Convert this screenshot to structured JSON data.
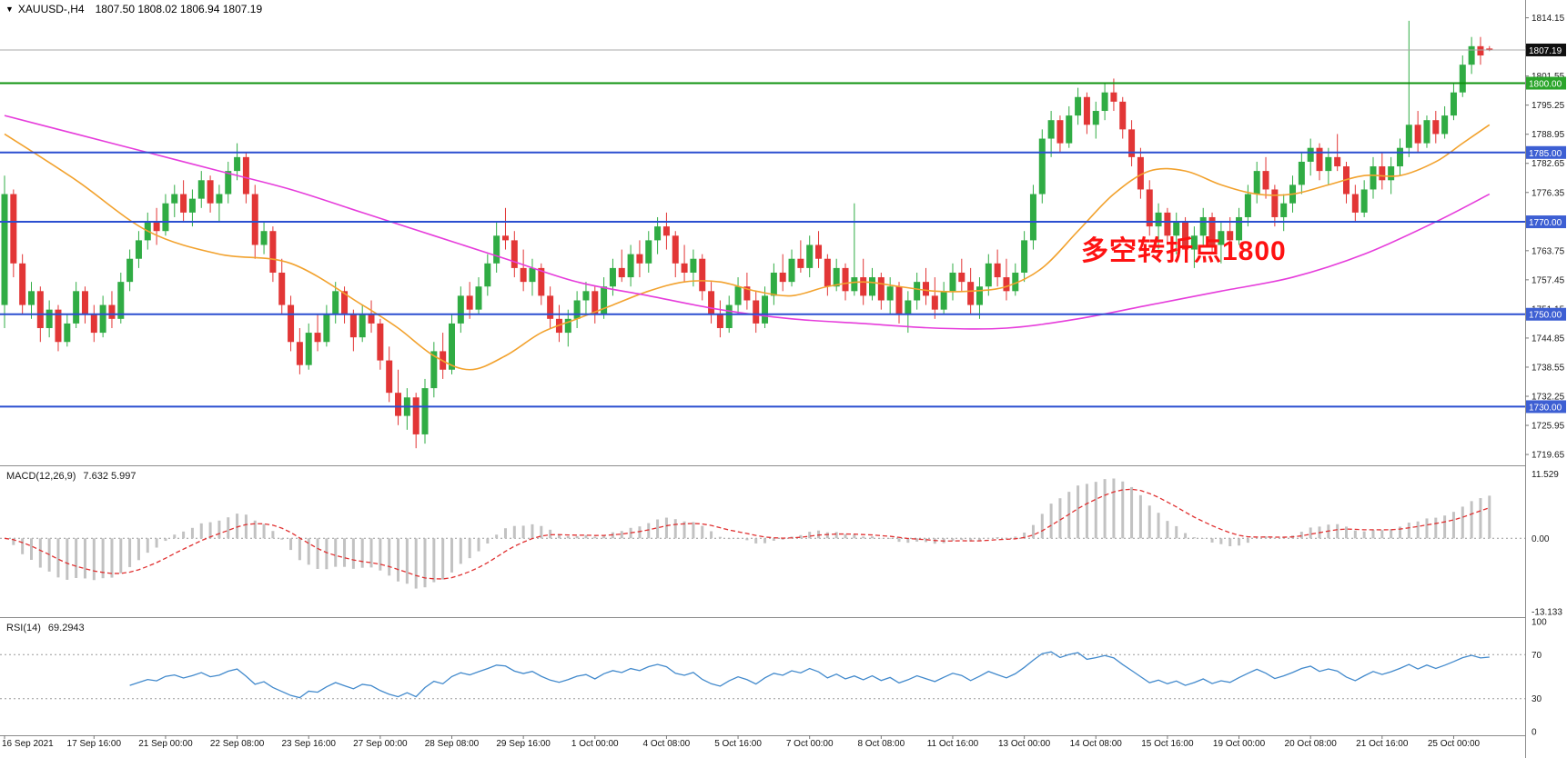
{
  "window": {
    "marker": "▼",
    "symbol_label": "XAUUSD-,H4",
    "ohlc_text": "1807.50 1808.02 1806.94 1807.19"
  },
  "annotation": {
    "text": "多空转折点1800",
    "color": "#fe1212"
  },
  "chart_data": {
    "type": "candlestick",
    "symbol": "XAUUSD-",
    "timeframe": "H4",
    "current_bar": {
      "open": 1807.5,
      "high": 1808.02,
      "low": 1806.94,
      "close": 1807.19
    },
    "current_price": 1807.19,
    "price_axis": {
      "view_max": 1818.0,
      "view_min": 1717.3,
      "tick_start": 1814.15,
      "tick_step": 6.3,
      "tick_count": 16
    },
    "colors": {
      "up": "#30ac44",
      "down": "#e23636",
      "ma_fast": "#f2a22e",
      "ma_slow": "#e63ddb",
      "hline_blue": "#2b4fd0",
      "tag_blue": "#3d5fd3",
      "hline_green": "#0f930f",
      "tag_green": "#2aa52a",
      "current_line": "#a8a8a8",
      "tag_current": "#101010",
      "histogram": "#c2c2c2",
      "macd_signal": "#e03131",
      "rsi_line": "#4189cc",
      "separator": "#8c8c8c",
      "dotted_level": "#9a9a9a"
    },
    "horizontal_levels": [
      {
        "price": 1800.0,
        "kind": "green"
      },
      {
        "price": 1785.0,
        "kind": "blue"
      },
      {
        "price": 1770.0,
        "kind": "blue"
      },
      {
        "price": 1750.0,
        "kind": "blue"
      },
      {
        "price": 1730.0,
        "kind": "blue"
      }
    ],
    "time_labels": [
      {
        "bar": 0,
        "text": "16 Sep 2021"
      },
      {
        "bar": 10,
        "text": "17 Sep 16:00"
      },
      {
        "bar": 18,
        "text": "21 Sep 00:00"
      },
      {
        "bar": 26,
        "text": "22 Sep 08:00"
      },
      {
        "bar": 34,
        "text": "23 Sep 16:00"
      },
      {
        "bar": 42,
        "text": "27 Sep 00:00"
      },
      {
        "bar": 50,
        "text": "28 Sep 08:00"
      },
      {
        "bar": 58,
        "text": "29 Sep 16:00"
      },
      {
        "bar": 66,
        "text": "1 Oct 00:00"
      },
      {
        "bar": 74,
        "text": "4 Oct 08:00"
      },
      {
        "bar": 82,
        "text": "5 Oct 16:00"
      },
      {
        "bar": 90,
        "text": "7 Oct 00:00"
      },
      {
        "bar": 98,
        "text": "8 Oct 08:00"
      },
      {
        "bar": 106,
        "text": "11 Oct 16:00"
      },
      {
        "bar": 114,
        "text": "13 Oct 00:00"
      },
      {
        "bar": 122,
        "text": "14 Oct 08:00"
      },
      {
        "bar": 130,
        "text": "15 Oct 16:00"
      },
      {
        "bar": 138,
        "text": "19 Oct 00:00"
      },
      {
        "bar": 146,
        "text": "20 Oct 08:00"
      },
      {
        "bar": 154,
        "text": "21 Oct 16:00"
      },
      {
        "bar": 162,
        "text": "25 Oct 00:00"
      }
    ],
    "candles": [
      [
        1752,
        1780,
        1747,
        1776
      ],
      [
        1776,
        1777,
        1758,
        1761
      ],
      [
        1761,
        1763,
        1750,
        1752
      ],
      [
        1752,
        1757,
        1749,
        1755
      ],
      [
        1755,
        1756,
        1744,
        1747
      ],
      [
        1747,
        1753,
        1745,
        1751
      ],
      [
        1751,
        1752,
        1742,
        1744
      ],
      [
        1744,
        1750,
        1743,
        1748
      ],
      [
        1748,
        1757,
        1747,
        1755
      ],
      [
        1755,
        1756,
        1748,
        1750
      ],
      [
        1750,
        1752,
        1744,
        1746
      ],
      [
        1746,
        1754,
        1745,
        1752
      ],
      [
        1752,
        1755,
        1747,
        1749
      ],
      [
        1749,
        1759,
        1748,
        1757
      ],
      [
        1757,
        1764,
        1755,
        1762
      ],
      [
        1762,
        1768,
        1760,
        1766
      ],
      [
        1766,
        1772,
        1764,
        1770
      ],
      [
        1770,
        1773,
        1765,
        1768
      ],
      [
        1768,
        1776,
        1767,
        1774
      ],
      [
        1774,
        1778,
        1771,
        1776
      ],
      [
        1776,
        1779,
        1770,
        1772
      ],
      [
        1772,
        1777,
        1769,
        1775
      ],
      [
        1775,
        1781,
        1773,
        1779
      ],
      [
        1779,
        1780,
        1772,
        1774
      ],
      [
        1774,
        1778,
        1770,
        1776
      ],
      [
        1776,
        1783,
        1774,
        1781
      ],
      [
        1781,
        1787,
        1779,
        1784
      ],
      [
        1784,
        1785,
        1774,
        1776
      ],
      [
        1776,
        1778,
        1762,
        1765
      ],
      [
        1765,
        1770,
        1763,
        1768
      ],
      [
        1768,
        1769,
        1757,
        1759
      ],
      [
        1759,
        1762,
        1750,
        1752
      ],
      [
        1752,
        1754,
        1742,
        1744
      ],
      [
        1744,
        1747,
        1737,
        1739
      ],
      [
        1739,
        1748,
        1738,
        1746
      ],
      [
        1746,
        1750,
        1742,
        1744
      ],
      [
        1744,
        1752,
        1743,
        1750
      ],
      [
        1750,
        1757,
        1748,
        1755
      ],
      [
        1755,
        1756,
        1748,
        1750
      ],
      [
        1750,
        1751,
        1742,
        1745
      ],
      [
        1745,
        1752,
        1744,
        1750
      ],
      [
        1750,
        1753,
        1746,
        1748
      ],
      [
        1748,
        1749,
        1738,
        1740
      ],
      [
        1740,
        1743,
        1731,
        1733
      ],
      [
        1733,
        1738,
        1726,
        1728
      ],
      [
        1728,
        1734,
        1725,
        1732
      ],
      [
        1732,
        1733,
        1721,
        1724
      ],
      [
        1724,
        1736,
        1722,
        1734
      ],
      [
        1734,
        1744,
        1732,
        1742
      ],
      [
        1742,
        1746,
        1736,
        1738
      ],
      [
        1738,
        1750,
        1737,
        1748
      ],
      [
        1748,
        1756,
        1746,
        1754
      ],
      [
        1754,
        1757,
        1749,
        1751
      ],
      [
        1751,
        1758,
        1750,
        1756
      ],
      [
        1756,
        1763,
        1754,
        1761
      ],
      [
        1761,
        1770,
        1759,
        1767
      ],
      [
        1767,
        1773,
        1764,
        1766
      ],
      [
        1766,
        1768,
        1758,
        1760
      ],
      [
        1760,
        1764,
        1755,
        1757
      ],
      [
        1757,
        1762,
        1754,
        1760
      ],
      [
        1760,
        1761,
        1752,
        1754
      ],
      [
        1754,
        1756,
        1747,
        1749
      ],
      [
        1749,
        1752,
        1744,
        1746
      ],
      [
        1746,
        1751,
        1743,
        1749
      ],
      [
        1749,
        1755,
        1747,
        1753
      ],
      [
        1753,
        1757,
        1750,
        1755
      ],
      [
        1755,
        1756,
        1748,
        1750
      ],
      [
        1750,
        1758,
        1749,
        1756
      ],
      [
        1756,
        1762,
        1754,
        1760
      ],
      [
        1760,
        1764,
        1757,
        1758
      ],
      [
        1758,
        1765,
        1756,
        1763
      ],
      [
        1763,
        1766,
        1758,
        1761
      ],
      [
        1761,
        1768,
        1759,
        1766
      ],
      [
        1766,
        1771,
        1763,
        1769
      ],
      [
        1769,
        1772,
        1764,
        1767
      ],
      [
        1767,
        1768,
        1758,
        1761
      ],
      [
        1761,
        1765,
        1757,
        1759
      ],
      [
        1759,
        1764,
        1756,
        1762
      ],
      [
        1762,
        1763,
        1753,
        1755
      ],
      [
        1755,
        1757,
        1748,
        1750
      ],
      [
        1750,
        1753,
        1745,
        1747
      ],
      [
        1747,
        1754,
        1746,
        1752
      ],
      [
        1752,
        1758,
        1750,
        1756
      ],
      [
        1756,
        1759,
        1751,
        1753
      ],
      [
        1753,
        1755,
        1746,
        1748
      ],
      [
        1748,
        1756,
        1747,
        1754
      ],
      [
        1754,
        1761,
        1752,
        1759
      ],
      [
        1759,
        1763,
        1755,
        1757
      ],
      [
        1757,
        1764,
        1756,
        1762
      ],
      [
        1762,
        1766,
        1759,
        1760
      ],
      [
        1760,
        1767,
        1758,
        1765
      ],
      [
        1765,
        1768,
        1760,
        1762
      ],
      [
        1762,
        1763,
        1754,
        1756
      ],
      [
        1756,
        1762,
        1755,
        1760
      ],
      [
        1760,
        1761,
        1753,
        1755
      ],
      [
        1755,
        1774,
        1754,
        1758
      ],
      [
        1758,
        1762,
        1752,
        1754
      ],
      [
        1754,
        1760,
        1753,
        1758
      ],
      [
        1758,
        1759,
        1751,
        1753
      ],
      [
        1753,
        1758,
        1750,
        1756
      ],
      [
        1756,
        1757,
        1748,
        1750
      ],
      [
        1750,
        1755,
        1746,
        1753
      ],
      [
        1753,
        1759,
        1751,
        1757
      ],
      [
        1757,
        1760,
        1752,
        1754
      ],
      [
        1754,
        1758,
        1749,
        1751
      ],
      [
        1751,
        1757,
        1750,
        1755
      ],
      [
        1755,
        1761,
        1753,
        1759
      ],
      [
        1759,
        1762,
        1755,
        1757
      ],
      [
        1757,
        1760,
        1750,
        1752
      ],
      [
        1752,
        1758,
        1749,
        1756
      ],
      [
        1756,
        1763,
        1754,
        1761
      ],
      [
        1761,
        1764,
        1756,
        1758
      ],
      [
        1758,
        1762,
        1753,
        1755
      ],
      [
        1755,
        1761,
        1754,
        1759
      ],
      [
        1759,
        1768,
        1757,
        1766
      ],
      [
        1766,
        1778,
        1764,
        1776
      ],
      [
        1776,
        1790,
        1774,
        1788
      ],
      [
        1788,
        1794,
        1784,
        1792
      ],
      [
        1792,
        1793,
        1785,
        1787
      ],
      [
        1787,
        1795,
        1786,
        1793
      ],
      [
        1793,
        1799,
        1791,
        1797
      ],
      [
        1797,
        1798,
        1789,
        1791
      ],
      [
        1791,
        1796,
        1788,
        1794
      ],
      [
        1794,
        1800,
        1792,
        1798
      ],
      [
        1798,
        1801,
        1794,
        1796
      ],
      [
        1796,
        1797,
        1788,
        1790
      ],
      [
        1790,
        1792,
        1782,
        1784
      ],
      [
        1784,
        1786,
        1775,
        1777
      ],
      [
        1777,
        1779,
        1767,
        1769
      ],
      [
        1769,
        1774,
        1764,
        1772
      ],
      [
        1772,
        1773,
        1765,
        1767
      ],
      [
        1767,
        1772,
        1763,
        1770
      ],
      [
        1770,
        1771,
        1762,
        1764
      ],
      [
        1764,
        1769,
        1760,
        1767
      ],
      [
        1767,
        1773,
        1765,
        1771
      ],
      [
        1771,
        1772,
        1763,
        1765
      ],
      [
        1765,
        1770,
        1761,
        1768
      ],
      [
        1768,
        1771,
        1764,
        1766
      ],
      [
        1766,
        1773,
        1765,
        1771
      ],
      [
        1771,
        1778,
        1769,
        1776
      ],
      [
        1776,
        1783,
        1774,
        1781
      ],
      [
        1781,
        1784,
        1775,
        1777
      ],
      [
        1777,
        1778,
        1769,
        1771
      ],
      [
        1771,
        1776,
        1768,
        1774
      ],
      [
        1774,
        1780,
        1772,
        1778
      ],
      [
        1778,
        1785,
        1776,
        1783
      ],
      [
        1783,
        1788,
        1780,
        1786
      ],
      [
        1786,
        1787,
        1779,
        1781
      ],
      [
        1781,
        1786,
        1778,
        1784
      ],
      [
        1784,
        1789,
        1781,
        1782
      ],
      [
        1782,
        1783,
        1774,
        1776
      ],
      [
        1776,
        1778,
        1770,
        1772
      ],
      [
        1772,
        1779,
        1771,
        1777
      ],
      [
        1777,
        1784,
        1775,
        1782
      ],
      [
        1782,
        1785,
        1777,
        1779
      ],
      [
        1779,
        1784,
        1776,
        1782
      ],
      [
        1782,
        1788,
        1780,
        1786
      ],
      [
        1786,
        1813.5,
        1784,
        1791
      ],
      [
        1791,
        1794,
        1785,
        1787
      ],
      [
        1787,
        1793,
        1786,
        1792
      ],
      [
        1792,
        1794,
        1787,
        1789
      ],
      [
        1789,
        1795,
        1788,
        1793
      ],
      [
        1793,
        1800,
        1792,
        1798
      ],
      [
        1798,
        1806,
        1797,
        1804
      ],
      [
        1804,
        1810,
        1802,
        1808
      ],
      [
        1808,
        1810,
        1804,
        1806
      ],
      [
        1807.5,
        1808.02,
        1806.94,
        1807.19
      ]
    ],
    "moving_averages": [
      {
        "name": "ma-fast-orange",
        "points": [
          [
            0,
            1789
          ],
          [
            8,
            1779
          ],
          [
            16,
            1768
          ],
          [
            24,
            1763
          ],
          [
            32,
            1761
          ],
          [
            40,
            1752
          ],
          [
            44,
            1747
          ],
          [
            48,
            1741
          ],
          [
            52,
            1738
          ],
          [
            56,
            1741
          ],
          [
            60,
            1746
          ],
          [
            64,
            1749
          ],
          [
            68,
            1752
          ],
          [
            72,
            1755
          ],
          [
            76,
            1757
          ],
          [
            80,
            1757
          ],
          [
            84,
            1755
          ],
          [
            88,
            1754
          ],
          [
            92,
            1756
          ],
          [
            96,
            1757
          ],
          [
            100,
            1756
          ],
          [
            104,
            1755
          ],
          [
            108,
            1755
          ],
          [
            112,
            1756
          ],
          [
            116,
            1760
          ],
          [
            120,
            1768
          ],
          [
            124,
            1776
          ],
          [
            128,
            1781
          ],
          [
            132,
            1781
          ],
          [
            136,
            1778
          ],
          [
            140,
            1776
          ],
          [
            144,
            1776
          ],
          [
            148,
            1778
          ],
          [
            152,
            1780
          ],
          [
            156,
            1780
          ],
          [
            160,
            1783
          ],
          [
            163,
            1787
          ],
          [
            166,
            1791
          ]
        ]
      },
      {
        "name": "ma-slow-magenta",
        "points": [
          [
            0,
            1793
          ],
          [
            8,
            1789
          ],
          [
            16,
            1785
          ],
          [
            24,
            1781
          ],
          [
            32,
            1777
          ],
          [
            40,
            1772
          ],
          [
            48,
            1767
          ],
          [
            56,
            1762
          ],
          [
            64,
            1757
          ],
          [
            72,
            1754
          ],
          [
            80,
            1751
          ],
          [
            88,
            1749
          ],
          [
            96,
            1748
          ],
          [
            104,
            1747
          ],
          [
            112,
            1747
          ],
          [
            120,
            1749
          ],
          [
            128,
            1752
          ],
          [
            136,
            1755
          ],
          [
            144,
            1758
          ],
          [
            152,
            1763
          ],
          [
            160,
            1770
          ],
          [
            166,
            1776
          ]
        ]
      }
    ],
    "indicators": {
      "macd": {
        "label": "MACD(12,26,9)",
        "current_values": "7.632 5.997",
        "fast_period": 12,
        "slow_period": 26,
        "signal_period": 9,
        "axis_ticks": [
          {
            "value": 11.529,
            "text": "11.529"
          },
          {
            "value": 0,
            "text": "0.00"
          },
          {
            "value": -13.133,
            "text": "-13.133"
          }
        ],
        "range": {
          "max": 12.9,
          "min": -14.1
        }
      },
      "rsi": {
        "label": "RSI(14)",
        "current_value": "69.2943",
        "period": 14,
        "levels": [
          70,
          30
        ],
        "axis_ticks": [
          100,
          70,
          30,
          0
        ],
        "range": {
          "max": 100,
          "min": 0
        }
      }
    }
  }
}
